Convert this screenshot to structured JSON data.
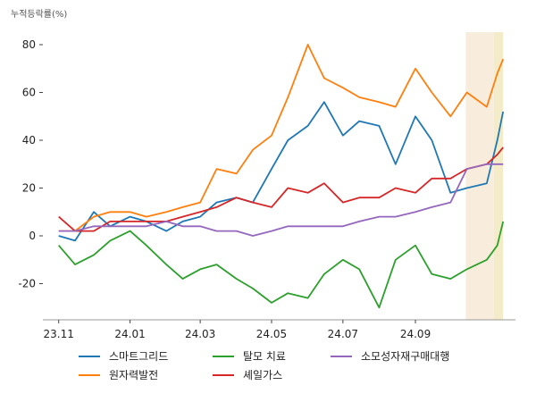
{
  "chart_data": {
    "type": "line",
    "ylabel": "누적등락률(%)",
    "x_ticks": [
      "23.11",
      "24.01",
      "24.03",
      "24.05",
      "24.07",
      "24.09"
    ],
    "y_ticks": [
      -20,
      0,
      20,
      40,
      60,
      80
    ],
    "ylim": [
      -36,
      86
    ],
    "grid": false,
    "legend_placement": "bottom",
    "highlights": [
      {
        "from": "24.10.14",
        "to": "24.11.07",
        "color": "#f8ecdc"
      },
      {
        "from": "24.11.07",
        "to": "24.11.15",
        "color": "#f4ecc8"
      }
    ],
    "series": [
      {
        "name": "스마트그리드",
        "color": "#1f77b4",
        "points": [
          [
            "23.11.01",
            0
          ],
          [
            "23.11.15",
            -2
          ],
          [
            "23.12.01",
            10
          ],
          [
            "23.12.15",
            4
          ],
          [
            "24.01.01",
            8
          ],
          [
            "24.01.15",
            6
          ],
          [
            "24.02.01",
            2
          ],
          [
            "24.02.15",
            6
          ],
          [
            "24.03.01",
            8
          ],
          [
            "24.03.15",
            14
          ],
          [
            "24.04.01",
            16
          ],
          [
            "24.04.15",
            14
          ],
          [
            "24.05.01",
            28
          ],
          [
            "24.05.15",
            40
          ],
          [
            "24.06.01",
            46
          ],
          [
            "24.06.15",
            56
          ],
          [
            "24.07.01",
            42
          ],
          [
            "24.07.15",
            48
          ],
          [
            "24.08.01",
            46
          ],
          [
            "24.08.15",
            30
          ],
          [
            "24.09.01",
            50
          ],
          [
            "24.09.15",
            40
          ],
          [
            "24.10.01",
            18
          ],
          [
            "24.10.15",
            20
          ],
          [
            "24.11.01",
            22
          ],
          [
            "24.11.10",
            40
          ],
          [
            "24.11.15",
            52
          ]
        ]
      },
      {
        "name": "원자력발전",
        "color": "#ff7f0e",
        "points": [
          [
            "23.11.01",
            2
          ],
          [
            "23.11.15",
            2
          ],
          [
            "23.12.01",
            8
          ],
          [
            "23.12.15",
            10
          ],
          [
            "24.01.01",
            10
          ],
          [
            "24.01.15",
            8
          ],
          [
            "24.02.01",
            10
          ],
          [
            "24.02.15",
            12
          ],
          [
            "24.03.01",
            14
          ],
          [
            "24.03.15",
            28
          ],
          [
            "24.04.01",
            26
          ],
          [
            "24.04.15",
            36
          ],
          [
            "24.05.01",
            42
          ],
          [
            "24.05.15",
            58
          ],
          [
            "24.06.01",
            80
          ],
          [
            "24.06.15",
            66
          ],
          [
            "24.07.01",
            62
          ],
          [
            "24.07.15",
            58
          ],
          [
            "24.08.01",
            56
          ],
          [
            "24.08.15",
            54
          ],
          [
            "24.09.01",
            70
          ],
          [
            "24.09.15",
            60
          ],
          [
            "24.10.01",
            50
          ],
          [
            "24.10.15",
            60
          ],
          [
            "24.11.01",
            54
          ],
          [
            "24.11.10",
            68
          ],
          [
            "24.11.15",
            74
          ]
        ]
      },
      {
        "name": "탈모 치료",
        "color": "#2ca02c",
        "points": [
          [
            "23.11.01",
            -4
          ],
          [
            "23.11.15",
            -12
          ],
          [
            "23.12.01",
            -8
          ],
          [
            "23.12.15",
            -2
          ],
          [
            "24.01.01",
            2
          ],
          [
            "24.01.15",
            -4
          ],
          [
            "24.02.01",
            -12
          ],
          [
            "24.02.15",
            -18
          ],
          [
            "24.03.01",
            -14
          ],
          [
            "24.03.15",
            -12
          ],
          [
            "24.04.01",
            -18
          ],
          [
            "24.04.15",
            -22
          ],
          [
            "24.05.01",
            -28
          ],
          [
            "24.05.15",
            -24
          ],
          [
            "24.06.01",
            -26
          ],
          [
            "24.06.15",
            -16
          ],
          [
            "24.07.01",
            -10
          ],
          [
            "24.07.15",
            -14
          ],
          [
            "24.08.01",
            -30
          ],
          [
            "24.08.15",
            -10
          ],
          [
            "24.09.01",
            -4
          ],
          [
            "24.09.15",
            -16
          ],
          [
            "24.10.01",
            -18
          ],
          [
            "24.10.15",
            -14
          ],
          [
            "24.11.01",
            -10
          ],
          [
            "24.11.10",
            -4
          ],
          [
            "24.11.15",
            6
          ]
        ]
      },
      {
        "name": "셰일가스",
        "color": "#d62728",
        "points": [
          [
            "23.11.01",
            8
          ],
          [
            "23.11.15",
            2
          ],
          [
            "23.12.01",
            2
          ],
          [
            "23.12.15",
            6
          ],
          [
            "24.01.01",
            6
          ],
          [
            "24.01.15",
            6
          ],
          [
            "24.02.01",
            6
          ],
          [
            "24.02.15",
            8
          ],
          [
            "24.03.01",
            10
          ],
          [
            "24.03.15",
            12
          ],
          [
            "24.04.01",
            16
          ],
          [
            "24.04.15",
            14
          ],
          [
            "24.05.01",
            12
          ],
          [
            "24.05.15",
            20
          ],
          [
            "24.06.01",
            18
          ],
          [
            "24.06.15",
            22
          ],
          [
            "24.07.01",
            14
          ],
          [
            "24.07.15",
            16
          ],
          [
            "24.08.01",
            16
          ],
          [
            "24.08.15",
            20
          ],
          [
            "24.09.01",
            18
          ],
          [
            "24.09.15",
            24
          ],
          [
            "24.10.01",
            24
          ],
          [
            "24.10.15",
            28
          ],
          [
            "24.11.01",
            30
          ],
          [
            "24.11.10",
            34
          ],
          [
            "24.11.15",
            37
          ]
        ]
      },
      {
        "name": "소모성자재구매대행",
        "color": "#9467bd",
        "points": [
          [
            "23.11.01",
            2
          ],
          [
            "23.11.15",
            2
          ],
          [
            "23.12.01",
            4
          ],
          [
            "23.12.15",
            4
          ],
          [
            "24.01.01",
            4
          ],
          [
            "24.01.15",
            4
          ],
          [
            "24.02.01",
            6
          ],
          [
            "24.02.15",
            4
          ],
          [
            "24.03.01",
            4
          ],
          [
            "24.03.15",
            2
          ],
          [
            "24.04.01",
            2
          ],
          [
            "24.04.15",
            0
          ],
          [
            "24.05.01",
            2
          ],
          [
            "24.05.15",
            4
          ],
          [
            "24.06.01",
            4
          ],
          [
            "24.06.15",
            4
          ],
          [
            "24.07.01",
            4
          ],
          [
            "24.07.15",
            6
          ],
          [
            "24.08.01",
            8
          ],
          [
            "24.08.15",
            8
          ],
          [
            "24.09.01",
            10
          ],
          [
            "24.09.15",
            12
          ],
          [
            "24.10.01",
            14
          ],
          [
            "24.10.15",
            28
          ],
          [
            "24.11.01",
            30
          ],
          [
            "24.11.10",
            30
          ],
          [
            "24.11.15",
            30
          ]
        ]
      }
    ]
  }
}
